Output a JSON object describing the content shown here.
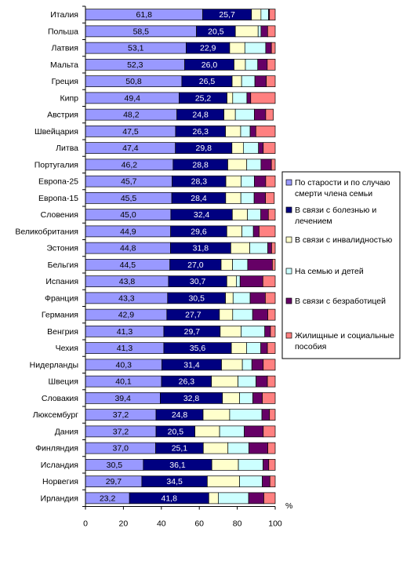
{
  "chart_data": {
    "type": "bar",
    "stacked": true,
    "orientation": "horizontal",
    "title": "",
    "xlabel": "%",
    "ylabel": "",
    "xlim": [
      0,
      100
    ],
    "xticks": [
      0,
      20,
      40,
      60,
      80,
      100
    ],
    "grid": false,
    "legend_position": "right",
    "categories": [
      "Италия",
      "Польша",
      "Латвия",
      "Мальта",
      "Греция",
      "Кипр",
      "Австрия",
      "Швейцария",
      "Литва",
      "Португалия",
      "Европа-25",
      "Европа-15",
      "Словения",
      "Великобритания",
      "Эстония",
      "Бельгия",
      "Испания",
      "Франция",
      "Германия",
      "Венгрия",
      "Чехия",
      "Нидерланды",
      "Швеция",
      "Словакия",
      "Люксембург",
      "Дания",
      "Финляндия",
      "Исландия",
      "Норвегия",
      "Ирландия"
    ],
    "series": [
      {
        "name": "По старости и по случаю смерти члена семьи",
        "color": "#9999ff",
        "labeled": true,
        "values": [
          61.8,
          58.5,
          53.1,
          52.3,
          50.8,
          49.4,
          48.2,
          47.5,
          47.4,
          46.2,
          45.7,
          45.5,
          45.0,
          44.9,
          44.8,
          44.5,
          43.8,
          43.3,
          42.9,
          41.3,
          41.3,
          40.3,
          40.1,
          39.4,
          37.2,
          37.2,
          37.0,
          30.5,
          29.7,
          23.2
        ]
      },
      {
        "name": "В связи с болезнью и лечением",
        "color": "#000080",
        "labeled": true,
        "values": [
          25.7,
          20.5,
          22.9,
          26.0,
          26.5,
          25.2,
          24.8,
          26.3,
          29.8,
          28.8,
          28.3,
          28.4,
          32.4,
          29.6,
          31.8,
          27.0,
          30.7,
          30.5,
          27.7,
          29.7,
          35.6,
          31.4,
          26.3,
          32.8,
          24.8,
          20.5,
          25.1,
          36.1,
          34.5,
          41.8
        ]
      },
      {
        "name": "В связи с инвалидностью",
        "color": "#ffffcc",
        "labeled": false,
        "values": [
          5.0,
          12.0,
          8.0,
          6.0,
          5.0,
          3.0,
          6.0,
          8.0,
          6.0,
          10.0,
          8.0,
          8.0,
          8.0,
          8.0,
          10.0,
          6.0,
          5.0,
          4.0,
          7.0,
          11.0,
          8.0,
          11.0,
          14.0,
          9.0,
          14.0,
          13.0,
          13.0,
          14.0,
          17.0,
          5.0
        ]
      },
      {
        "name": "На семью и детей",
        "color": "#ccffff",
        "labeled": false,
        "values": [
          4.0,
          1.5,
          11.0,
          6.5,
          7.0,
          7.5,
          10.0,
          5.0,
          8.0,
          7.5,
          7.0,
          7.0,
          7.0,
          6.0,
          9.5,
          8.0,
          2.0,
          9.0,
          10.5,
          12.5,
          7.5,
          5.0,
          9.5,
          7.0,
          17.0,
          13.0,
          11.0,
          13.0,
          12.0,
          16.0
        ]
      },
      {
        "name": "В связи с безработицей",
        "color": "#660066",
        "labeled": false,
        "values": [
          0.5,
          3.5,
          3.0,
          5.0,
          6.0,
          2.0,
          6.0,
          3.0,
          2.5,
          5.5,
          6.0,
          6.0,
          4.0,
          3.0,
          2.0,
          13.0,
          12.0,
          8.0,
          8.0,
          3.0,
          3.5,
          6.0,
          6.0,
          5.0,
          4.0,
          10.0,
          10.0,
          3.0,
          4.0,
          8.0
        ]
      },
      {
        "name": "Жилищные и социальные пособия",
        "color": "#ff8080",
        "labeled": false,
        "values": [
          3.0,
          4.0,
          2.0,
          4.2,
          4.7,
          12.9,
          4.0,
          10.2,
          6.3,
          2.0,
          5.0,
          4.6,
          3.6,
          8.5,
          1.9,
          1.5,
          6.5,
          5.2,
          3.9,
          2.5,
          4.1,
          6.3,
          4.1,
          6.8,
          3.0,
          6.3,
          3.9,
          3.4,
          2.8,
          6.0
        ]
      }
    ]
  }
}
